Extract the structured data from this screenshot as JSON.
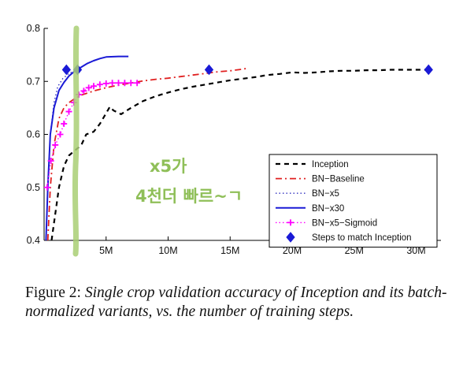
{
  "chart_data": {
    "type": "line",
    "xlim": [
      0,
      32
    ],
    "ylim": [
      0.4,
      0.8
    ],
    "x_ticks": [
      {
        "value": 5,
        "label": "5M"
      },
      {
        "value": 10,
        "label": "10M"
      },
      {
        "value": 15,
        "label": "15M"
      },
      {
        "value": 20,
        "label": "20M"
      },
      {
        "value": 25,
        "label": "25M"
      },
      {
        "value": 30,
        "label": "30M"
      }
    ],
    "y_ticks": [
      {
        "value": 0.4,
        "label": "0.4"
      },
      {
        "value": 0.5,
        "label": "0.5"
      },
      {
        "value": 0.6,
        "label": "0.6"
      },
      {
        "value": 0.7,
        "label": "0.7"
      },
      {
        "value": 0.8,
        "label": "0.8"
      }
    ],
    "grid": false,
    "legend_position": "bottom-right",
    "series": [
      {
        "name": "Inception",
        "color": "#000000",
        "style": "dashed",
        "marker": "none",
        "points": [
          [
            0.6,
            0.4
          ],
          [
            0.9,
            0.45
          ],
          [
            1.2,
            0.5
          ],
          [
            1.6,
            0.54
          ],
          [
            2.0,
            0.56
          ],
          [
            2.5,
            0.57
          ],
          [
            3.0,
            0.58
          ],
          [
            3.4,
            0.6
          ],
          [
            4.0,
            0.605
          ],
          [
            4.5,
            0.62
          ],
          [
            5.0,
            0.64
          ],
          [
            5.3,
            0.652
          ],
          [
            5.6,
            0.645
          ],
          [
            6.2,
            0.638
          ],
          [
            7.0,
            0.65
          ],
          [
            8.0,
            0.663
          ],
          [
            9.0,
            0.672
          ],
          [
            10.0,
            0.679
          ],
          [
            11.0,
            0.685
          ],
          [
            12.0,
            0.69
          ],
          [
            13.0,
            0.694
          ],
          [
            14.0,
            0.698
          ],
          [
            15.0,
            0.702
          ],
          [
            16.0,
            0.705
          ],
          [
            17.0,
            0.708
          ],
          [
            18.0,
            0.712
          ],
          [
            19.0,
            0.714
          ],
          [
            20.0,
            0.717
          ],
          [
            21.0,
            0.716
          ],
          [
            22.0,
            0.717
          ],
          [
            23.0,
            0.719
          ],
          [
            24.0,
            0.72
          ],
          [
            25.0,
            0.72
          ],
          [
            26.0,
            0.721
          ],
          [
            27.0,
            0.721
          ],
          [
            28.0,
            0.722
          ],
          [
            29.0,
            0.722
          ],
          [
            30.0,
            0.722
          ],
          [
            31.0,
            0.722
          ]
        ]
      },
      {
        "name": "BN−Baseline",
        "color": "#e02020",
        "style": "dashdot",
        "marker": "none",
        "points": [
          [
            0.3,
            0.4
          ],
          [
            0.5,
            0.5
          ],
          [
            0.8,
            0.58
          ],
          [
            1.2,
            0.63
          ],
          [
            1.6,
            0.65
          ],
          [
            2.0,
            0.66
          ],
          [
            2.5,
            0.668
          ],
          [
            3.0,
            0.674
          ],
          [
            4.0,
            0.682
          ],
          [
            5.0,
            0.688
          ],
          [
            6.0,
            0.693
          ],
          [
            7.0,
            0.697
          ],
          [
            8.0,
            0.701
          ],
          [
            9.0,
            0.704
          ],
          [
            10.0,
            0.706
          ],
          [
            11.0,
            0.709
          ],
          [
            12.0,
            0.712
          ],
          [
            13.0,
            0.715
          ],
          [
            14.0,
            0.718
          ],
          [
            15.0,
            0.72
          ],
          [
            16.0,
            0.723
          ],
          [
            16.5,
            0.725
          ]
        ]
      },
      {
        "name": "BN−x5",
        "color": "#3030c0",
        "style": "dotted",
        "marker": "none",
        "points": [
          [
            0.15,
            0.4
          ],
          [
            0.3,
            0.5
          ],
          [
            0.5,
            0.6
          ],
          [
            0.8,
            0.66
          ],
          [
            1.1,
            0.69
          ],
          [
            1.5,
            0.705
          ],
          [
            2.0,
            0.715
          ],
          [
            2.5,
            0.72
          ],
          [
            3.0,
            0.722
          ]
        ]
      },
      {
        "name": "BN−x30",
        "color": "#1a1ad6",
        "style": "solid",
        "marker": "none",
        "points": [
          [
            0.15,
            0.4
          ],
          [
            0.3,
            0.5
          ],
          [
            0.5,
            0.6
          ],
          [
            0.8,
            0.65
          ],
          [
            1.2,
            0.683
          ],
          [
            1.6,
            0.698
          ],
          [
            2.0,
            0.71
          ],
          [
            2.5,
            0.72
          ],
          [
            3.0,
            0.727
          ],
          [
            3.5,
            0.734
          ],
          [
            4.0,
            0.739
          ],
          [
            4.5,
            0.743
          ],
          [
            5.0,
            0.746
          ],
          [
            6.0,
            0.747
          ],
          [
            6.8,
            0.747
          ]
        ]
      },
      {
        "name": "BN−x5−Sigmoid",
        "color": "#ff00ff",
        "style": "dotted",
        "marker": "plus",
        "points": [
          [
            0.25,
            0.5
          ],
          [
            0.55,
            0.55
          ],
          [
            0.9,
            0.58
          ],
          [
            1.3,
            0.6
          ],
          [
            1.6,
            0.62
          ],
          [
            2.0,
            0.643
          ],
          [
            2.4,
            0.66
          ],
          [
            2.8,
            0.675
          ],
          [
            3.2,
            0.682
          ],
          [
            3.6,
            0.688
          ],
          [
            4.0,
            0.691
          ],
          [
            4.5,
            0.694
          ],
          [
            5.0,
            0.696
          ],
          [
            5.5,
            0.697
          ],
          [
            6.0,
            0.697
          ],
          [
            6.5,
            0.697
          ],
          [
            7.0,
            0.697
          ],
          [
            7.5,
            0.697
          ]
        ]
      },
      {
        "name": "Steps to match Inception",
        "color": "#1a1ad6",
        "style": "none",
        "marker": "diamond",
        "points": [
          [
            1.8,
            0.722
          ],
          [
            2.7,
            0.722
          ],
          [
            13.3,
            0.722
          ],
          [
            31.0,
            0.722
          ]
        ]
      }
    ],
    "annotations": [
      "x5가",
      "4천더 빠르~ㄱ"
    ]
  },
  "caption": {
    "label": "Figure 2:",
    "text": "Single crop validation accuracy of Inception and its batch-normalized variants, vs.  the number of training steps."
  }
}
